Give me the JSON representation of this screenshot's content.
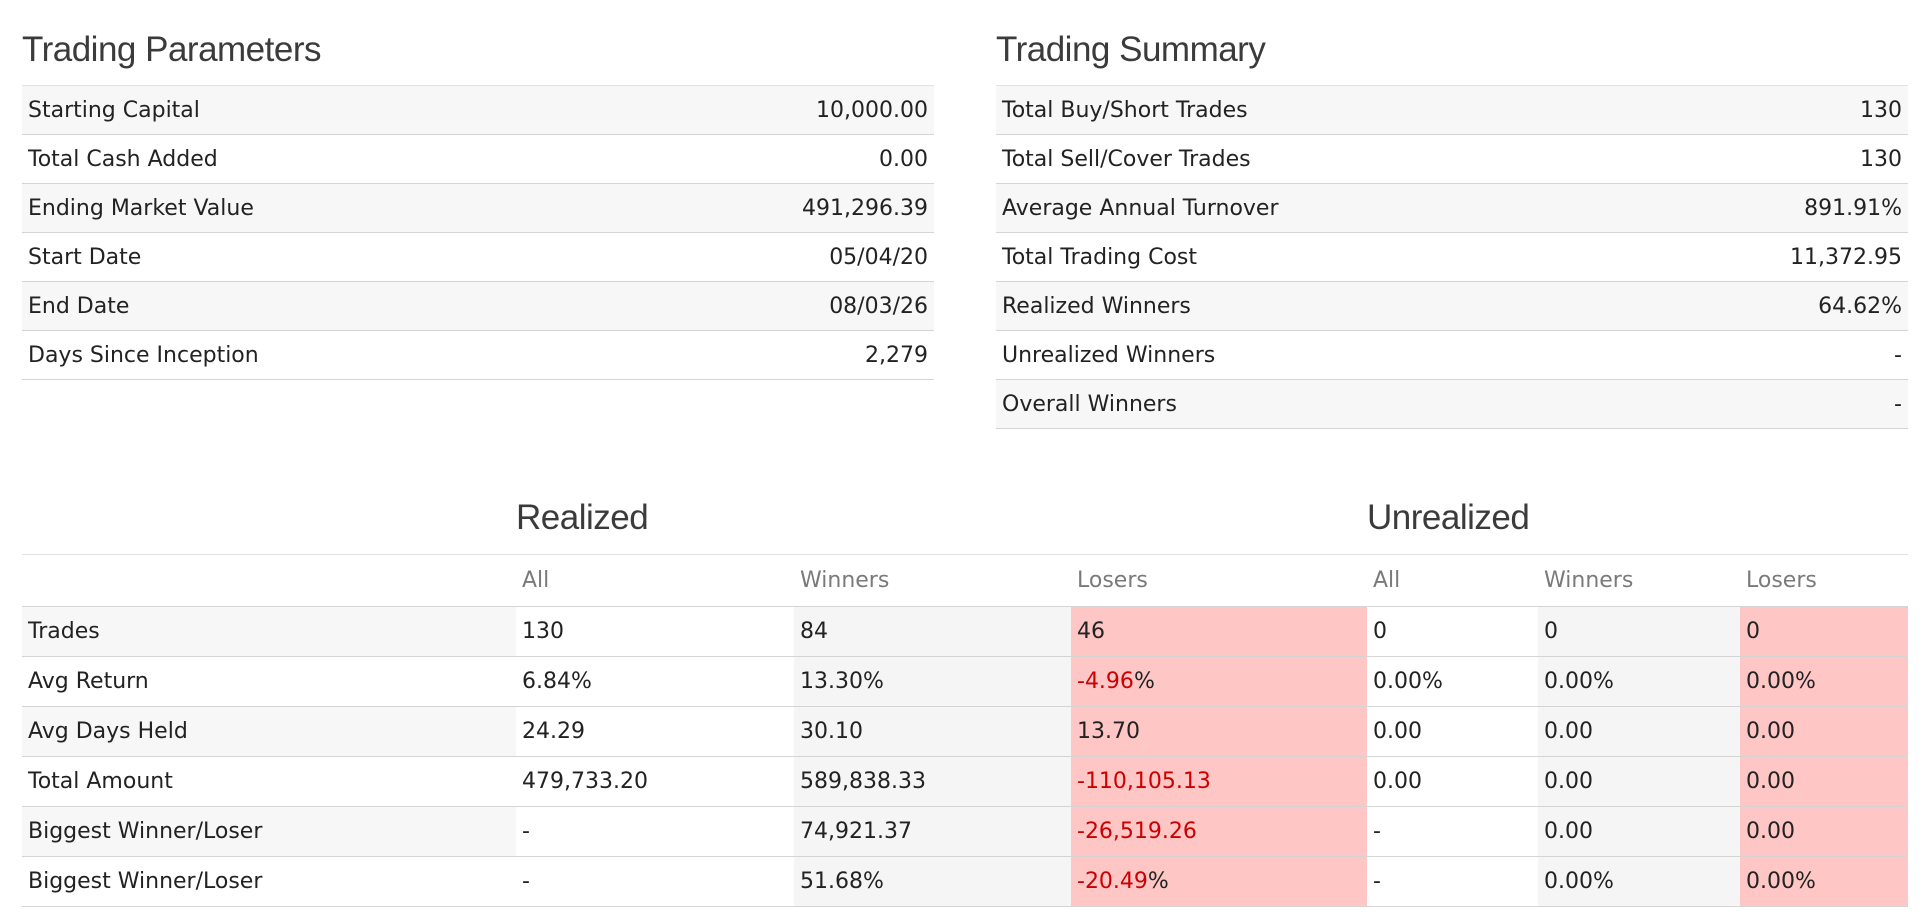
{
  "params": {
    "title": "Trading Parameters",
    "rows": [
      {
        "label": "Starting Capital",
        "value": "10,000.00"
      },
      {
        "label": "Total Cash Added",
        "value": "0.00"
      },
      {
        "label": "Ending Market Value",
        "value": "491,296.39"
      },
      {
        "label": "Start Date",
        "value": "05/04/20"
      },
      {
        "label": "End Date",
        "value": "08/03/26"
      },
      {
        "label": "Days Since Inception",
        "value": "2,279"
      }
    ]
  },
  "summary": {
    "title": "Trading Summary",
    "rows": [
      {
        "label": "Total Buy/Short Trades",
        "value": "130"
      },
      {
        "label": "Total Sell/Cover Trades",
        "value": "130"
      },
      {
        "label": "Average Annual Turnover",
        "value": "891.91%"
      },
      {
        "label": "Total Trading Cost",
        "value": "11,372.95"
      },
      {
        "label": "Realized Winners",
        "value": "64.62%"
      },
      {
        "label": "Unrealized Winners",
        "value": "-"
      },
      {
        "label": "Overall Winners",
        "value": "-"
      }
    ]
  },
  "stats": {
    "realized_title": "Realized",
    "unrealized_title": "Unrealized",
    "headers": [
      "All",
      "Winners",
      "Losers",
      "All",
      "Winners",
      "Losers"
    ],
    "rows": [
      {
        "label": "Trades",
        "r_all": "130",
        "r_win": "84",
        "r_los": "46",
        "r_los_suffix": "",
        "u_all": "0",
        "u_win": "0",
        "u_los": "0"
      },
      {
        "label": "Avg Return",
        "r_all": "6.84%",
        "r_win": "13.30%",
        "r_los": "-4.96",
        "r_los_suffix": "%",
        "u_all": "0.00%",
        "u_win": "0.00%",
        "u_los": "0.00%"
      },
      {
        "label": "Avg Days Held",
        "r_all": "24.29",
        "r_win": "30.10",
        "r_los": "13.70",
        "r_los_suffix": "",
        "u_all": "0.00",
        "u_win": "0.00",
        "u_los": "0.00"
      },
      {
        "label": "Total Amount",
        "r_all": "479,733.20",
        "r_win": "589,838.33",
        "r_los": "-110,105.13",
        "r_los_suffix": "",
        "u_all": "0.00",
        "u_win": "0.00",
        "u_los": "0.00"
      },
      {
        "label": "Biggest Winner/Loser",
        "r_all": "-",
        "r_win": "74,921.37",
        "r_los": "-26,519.26",
        "r_los_suffix": "",
        "u_all": "-",
        "u_win": "0.00",
        "u_los": "0.00"
      },
      {
        "label": "Biggest Winner/Loser",
        "r_all": "-",
        "r_win": "51.68%",
        "r_los": "-20.49",
        "r_los_suffix": "%",
        "u_all": "-",
        "u_win": "0.00%",
        "u_los": "0.00%"
      }
    ]
  },
  "colors": {
    "negative": "#cc0000",
    "loser_bg": "#ffc6c6"
  }
}
